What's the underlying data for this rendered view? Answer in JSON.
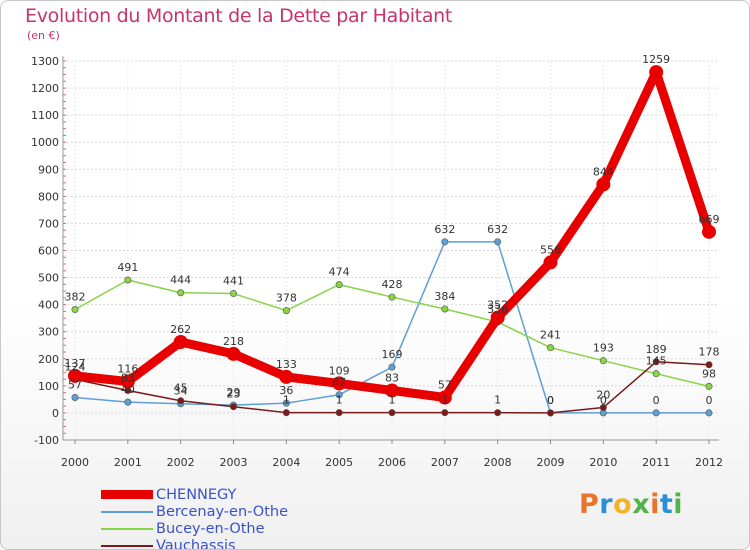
{
  "title": "Evolution du Montant de la Dette par Habitant",
  "subtitle": "(en €)",
  "logo": {
    "text": "Proxiti",
    "colors": [
      "#e8742a",
      "#2a8fd8",
      "#f2b32a",
      "#53b24a",
      "#e8742a",
      "#2a8fd8",
      "#53b24a"
    ]
  },
  "chart_data": {
    "type": "line",
    "categories": [
      "2000",
      "2001",
      "2002",
      "2003",
      "2004",
      "2005",
      "2006",
      "2007",
      "2008",
      "2009",
      "2010",
      "2011",
      "2012"
    ],
    "ylim": [
      -100,
      1300
    ],
    "yticks": [
      "-100",
      "0",
      "100",
      "200",
      "300",
      "400",
      "500",
      "600",
      "700",
      "800",
      "900",
      "1000",
      "1100",
      "1200",
      "1300"
    ],
    "grid": "horizontal",
    "legend_position": "bottom-left",
    "series": [
      {
        "name": "CHENNEGY",
        "color": "#e80000",
        "values": [
          137,
          116,
          262,
          218,
          133,
          109,
          83,
          57,
          352,
          556,
          844,
          1259,
          669
        ],
        "labels": [
          "137",
          "116",
          "262",
          "218",
          "133",
          "109",
          "83",
          "57",
          "352",
          "556",
          "844",
          "1259",
          "669"
        ]
      },
      {
        "name": "Bercenay-en-Othe",
        "color": "#5e9ed6",
        "values": [
          57,
          40,
          34,
          29,
          36,
          67,
          169,
          632,
          632,
          0,
          0,
          0,
          0
        ],
        "labels": [
          "57",
          "40",
          "34",
          "29",
          "36",
          "67",
          "169",
          "632",
          "632",
          "0",
          "0",
          "0",
          "0"
        ]
      },
      {
        "name": "Bucey-en-Othe",
        "color": "#88d445",
        "values": [
          382,
          491,
          444,
          441,
          378,
          474,
          428,
          384,
          336,
          241,
          193,
          145,
          98
        ],
        "labels": [
          "382",
          "491",
          "444",
          "441",
          "378",
          "474",
          "428",
          "384",
          "336",
          "241",
          "193",
          "145",
          "98"
        ]
      },
      {
        "name": "Vauchassis",
        "color": "#7a1a1a",
        "values": [
          124,
          83,
          45,
          23,
          1,
          1,
          1,
          1,
          1,
          0,
          20,
          189,
          178
        ],
        "labels": [
          "124",
          "83",
          "45",
          "23",
          "1",
          "1",
          "1",
          "1",
          "1",
          "0",
          "20",
          "189",
          "178"
        ]
      }
    ]
  }
}
